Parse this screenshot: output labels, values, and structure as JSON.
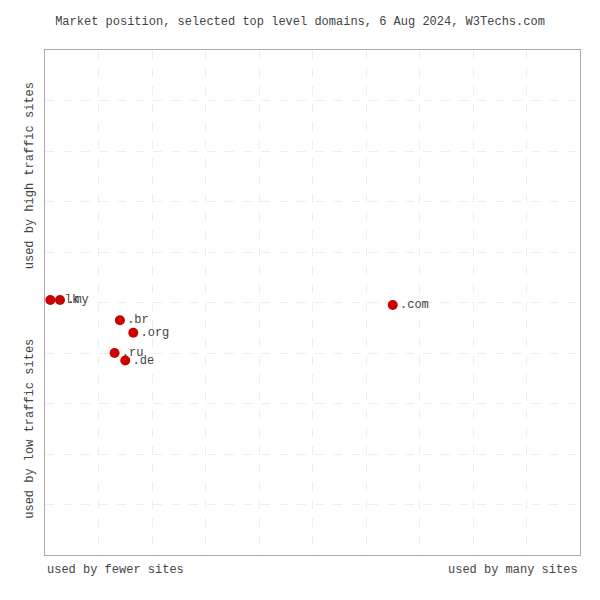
{
  "chart_data": {
    "type": "scatter",
    "title": "Market position, selected top level domains, 6 Aug 2024, W3Techs.com",
    "xlabel_left": "used by fewer sites",
    "xlabel_right": "used by many sites",
    "ylabel_bottom": "used by low traffic sites",
    "ylabel_top": "used by high traffic sites",
    "labels": [
      ".lk",
      ".my",
      ".br",
      ".org",
      ".ru",
      ".de",
      ".com"
    ],
    "x": [
      1.0,
      2.8,
      14.0,
      16.5,
      13.0,
      15.0,
      65.0
    ],
    "values": [
      50.5,
      50.5,
      46.5,
      44.0,
      40.0,
      38.5,
      49.5
    ],
    "color": "#cc0000",
    "xlim": [
      0,
      100
    ],
    "ylim": [
      0,
      100
    ],
    "xticks": [
      0,
      10,
      20,
      30,
      40,
      50,
      60,
      70,
      80,
      90,
      100
    ],
    "yticks": [
      0,
      10,
      20,
      30,
      40,
      50,
      60,
      70,
      80,
      90,
      100
    ],
    "grid": true,
    "tick_labels": false
  }
}
